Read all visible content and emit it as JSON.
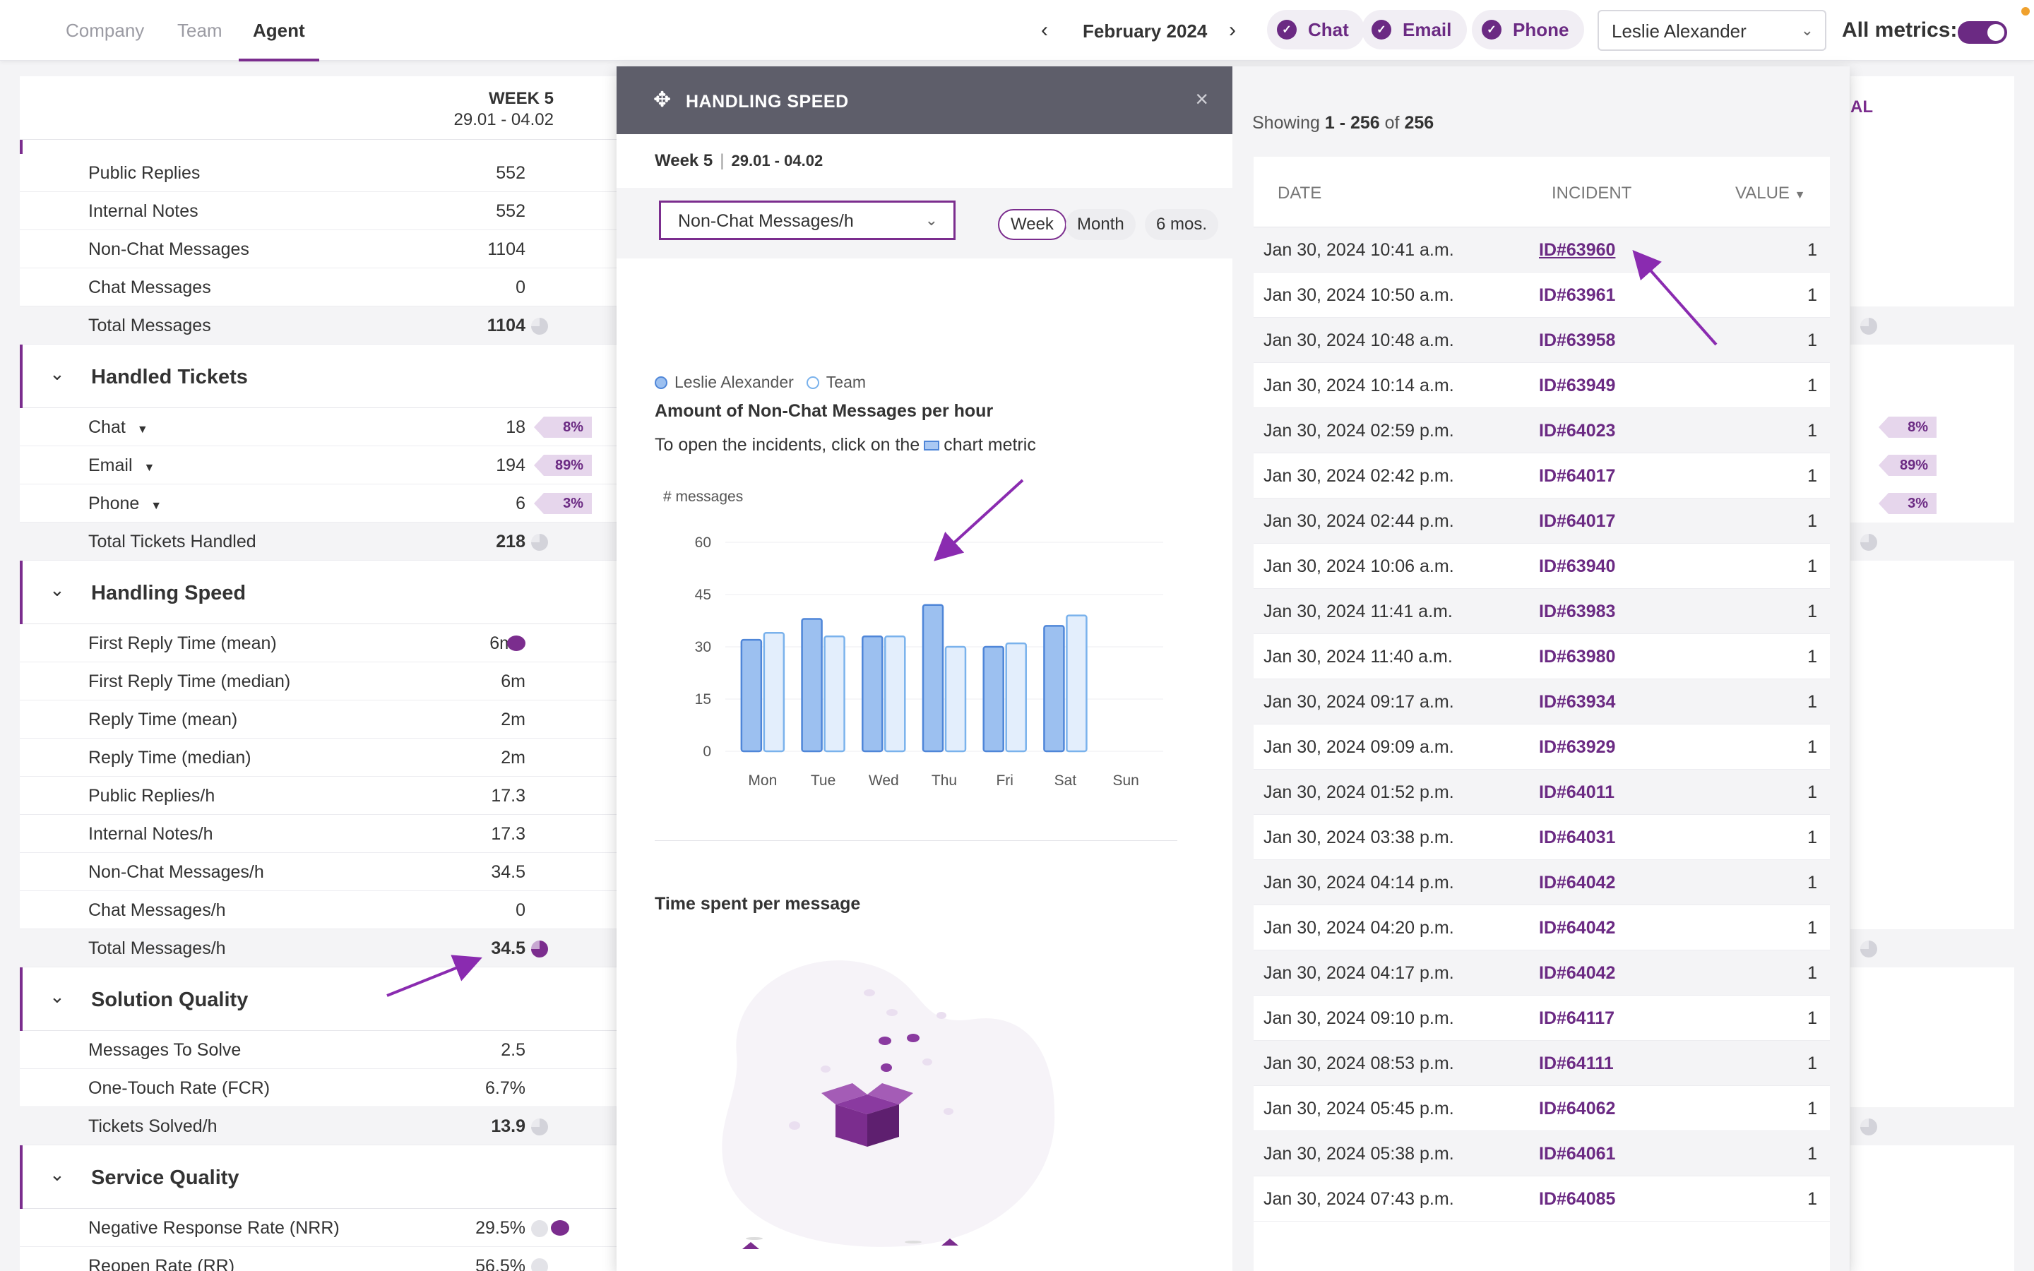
{
  "header": {
    "tabs": [
      {
        "label": "Company"
      },
      {
        "label": "Team"
      },
      {
        "label": "Agent"
      }
    ],
    "month": "February 2024",
    "channels": [
      {
        "label": "Chat"
      },
      {
        "label": "Email"
      },
      {
        "label": "Phone"
      }
    ],
    "agent": "Leslie Alexander",
    "all_metrics_label": "All metrics:",
    "accent_color": "#7b2d8e"
  },
  "left": {
    "week_title": "WEEK 5",
    "week_dates": "29.01 - 04.02",
    "messages_rows": [
      {
        "label": "Public Replies",
        "value": "552"
      },
      {
        "label": "Internal Notes",
        "value": "552"
      },
      {
        "label": "Non-Chat Messages",
        "value": "1104"
      },
      {
        "label": "Chat Messages",
        "value": "0"
      },
      {
        "label": "Total Messages",
        "value": "1104"
      }
    ],
    "sections": [
      {
        "title": "Handled Tickets"
      },
      {
        "title": "Handling Speed"
      },
      {
        "title": "Solution Quality"
      },
      {
        "title": "Service Quality"
      }
    ],
    "tickets_rows": [
      {
        "label": "Chat",
        "value": "18",
        "pct": "8%"
      },
      {
        "label": "Email",
        "value": "194",
        "pct": "89%"
      },
      {
        "label": "Phone",
        "value": "6",
        "pct": "3%"
      },
      {
        "label": "Total Tickets Handled",
        "value": "218"
      }
    ],
    "speed_rows": [
      {
        "label": "First Reply Time (mean)",
        "value": "6m"
      },
      {
        "label": "First Reply Time (median)",
        "value": "6m"
      },
      {
        "label": "Reply Time (mean)",
        "value": "2m"
      },
      {
        "label": "Reply Time (median)",
        "value": "2m"
      },
      {
        "label": "Public Replies/h",
        "value": "17.3"
      },
      {
        "label": "Internal Notes/h",
        "value": "17.3"
      },
      {
        "label": "Non-Chat Messages/h",
        "value": "34.5"
      },
      {
        "label": "Chat Messages/h",
        "value": "0"
      },
      {
        "label": "Total Messages/h",
        "value": "34.5"
      }
    ],
    "solution_rows": [
      {
        "label": "Messages To Solve",
        "value": "2.5"
      },
      {
        "label": "One-Touch Rate (FCR)",
        "value": "6.7%"
      },
      {
        "label": "Tickets Solved/h",
        "value": "13.9"
      }
    ],
    "service_rows": [
      {
        "label": "Negative Response Rate (NRR)",
        "value": "29.5%"
      },
      {
        "label": "Reopen Rate (RR)",
        "value": "56.5%"
      }
    ]
  },
  "right_bg": {
    "header_fragment": "AL",
    "tags": [
      "8%",
      "89%",
      "3%"
    ]
  },
  "modal": {
    "title": "HANDLING SPEED",
    "week_label": "Week 5",
    "week_dates": "29.01 - 04.02",
    "metric_selected": "Non-Chat Messages/h",
    "periods": [
      {
        "label": "Week"
      },
      {
        "label": "Month"
      },
      {
        "label": "6 mos."
      }
    ],
    "legend": [
      {
        "name": "Leslie Alexander"
      },
      {
        "name": "Team"
      }
    ],
    "chart_title": "Amount of Non-Chat Messages per hour",
    "hint_before": "To open the incidents, click on the",
    "hint_after": "chart metric",
    "time_spent_title": "Time spent per message"
  },
  "chart_data": {
    "type": "bar",
    "ylabel": "# messages",
    "ylim": [
      0,
      60
    ],
    "yticks": [
      "0",
      "15",
      "30",
      "45",
      "60"
    ],
    "categories": [
      "Mon",
      "Tue",
      "Wed",
      "Thu",
      "Fri",
      "Sat",
      "Sun"
    ],
    "series": [
      {
        "name": "Leslie Alexander",
        "values": [
          32,
          38,
          33,
          42,
          30,
          36,
          null
        ],
        "color": "#9cc0f0"
      },
      {
        "name": "Team",
        "values": [
          34,
          33,
          33,
          30,
          31,
          39,
          null
        ],
        "color": "#e3eefc"
      }
    ]
  },
  "incidents": {
    "showing_prefix": "Showing",
    "showing_range": "1 - 256",
    "showing_of": "of",
    "showing_total": "256",
    "columns": {
      "date": "DATE",
      "incident": "INCIDENT",
      "value": "VALUE"
    },
    "rows": [
      {
        "date": "Jan 30, 2024 10:41 a.m.",
        "id": "ID#63960",
        "value": "1"
      },
      {
        "date": "Jan 30, 2024 10:50 a.m.",
        "id": "ID#63961",
        "value": "1"
      },
      {
        "date": "Jan 30, 2024 10:48 a.m.",
        "id": "ID#63958",
        "value": "1"
      },
      {
        "date": "Jan 30, 2024 10:14 a.m.",
        "id": "ID#63949",
        "value": "1"
      },
      {
        "date": "Jan 30, 2024 02:59 p.m.",
        "id": "ID#64023",
        "value": "1"
      },
      {
        "date": "Jan 30, 2024 02:42 p.m.",
        "id": "ID#64017",
        "value": "1"
      },
      {
        "date": "Jan 30, 2024 02:44 p.m.",
        "id": "ID#64017",
        "value": "1"
      },
      {
        "date": "Jan 30, 2024 10:06 a.m.",
        "id": "ID#63940",
        "value": "1"
      },
      {
        "date": "Jan 30, 2024 11:41 a.m.",
        "id": "ID#63983",
        "value": "1"
      },
      {
        "date": "Jan 30, 2024 11:40 a.m.",
        "id": "ID#63980",
        "value": "1"
      },
      {
        "date": "Jan 30, 2024 09:17 a.m.",
        "id": "ID#63934",
        "value": "1"
      },
      {
        "date": "Jan 30, 2024 09:09 a.m.",
        "id": "ID#63929",
        "value": "1"
      },
      {
        "date": "Jan 30, 2024 01:52 p.m.",
        "id": "ID#64011",
        "value": "1"
      },
      {
        "date": "Jan 30, 2024 03:38 p.m.",
        "id": "ID#64031",
        "value": "1"
      },
      {
        "date": "Jan 30, 2024 04:14 p.m.",
        "id": "ID#64042",
        "value": "1"
      },
      {
        "date": "Jan 30, 2024 04:20 p.m.",
        "id": "ID#64042",
        "value": "1"
      },
      {
        "date": "Jan 30, 2024 04:17 p.m.",
        "id": "ID#64042",
        "value": "1"
      },
      {
        "date": "Jan 30, 2024 09:10 p.m.",
        "id": "ID#64117",
        "value": "1"
      },
      {
        "date": "Jan 30, 2024 08:53 p.m.",
        "id": "ID#64111",
        "value": "1"
      },
      {
        "date": "Jan 30, 2024 05:45 p.m.",
        "id": "ID#64062",
        "value": "1"
      },
      {
        "date": "Jan 30, 2024 05:38 p.m.",
        "id": "ID#64061",
        "value": "1"
      },
      {
        "date": "Jan 30, 2024 07:43 p.m.",
        "id": "ID#64085",
        "value": "1"
      }
    ]
  }
}
